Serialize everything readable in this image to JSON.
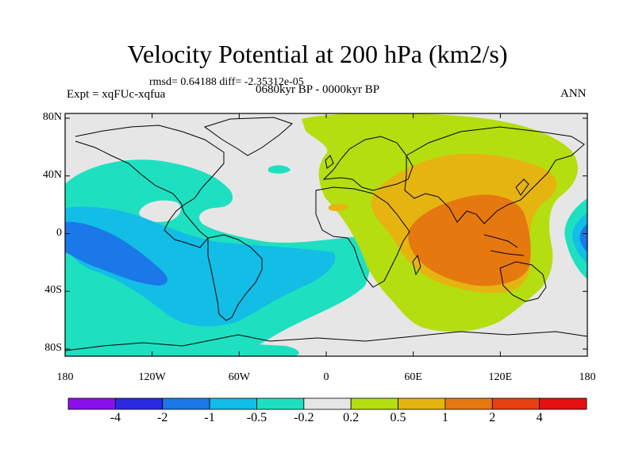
{
  "title": "Velocity Potential at 200 hPa (km2/s)",
  "stats": "rmsd= 0.64188 diff= -2.35312e-05",
  "experiment": "Expt = xqFUc-xqfua",
  "period": "0680kyr BP - 0000kyr BP",
  "season": "ANN",
  "axes": {
    "x_ticks": [
      "180",
      "120W",
      "60W",
      "0",
      "60E",
      "120E",
      "180"
    ],
    "y_ticks": [
      "80N",
      "40N",
      "0",
      "40S",
      "80S"
    ]
  },
  "colorbar": {
    "labels": [
      "-4",
      "-2",
      "-1",
      "-0.5",
      "-0.2",
      "0.2",
      "0.5",
      "1",
      "2",
      "4"
    ],
    "colors": [
      "#8a0fe8",
      "#2a2ae0",
      "#1a78e8",
      "#12bde6",
      "#1ee0c0",
      "#e6e6e6",
      "#b4de10",
      "#e6b410",
      "#e67810",
      "#e64010",
      "#e61010"
    ]
  }
}
